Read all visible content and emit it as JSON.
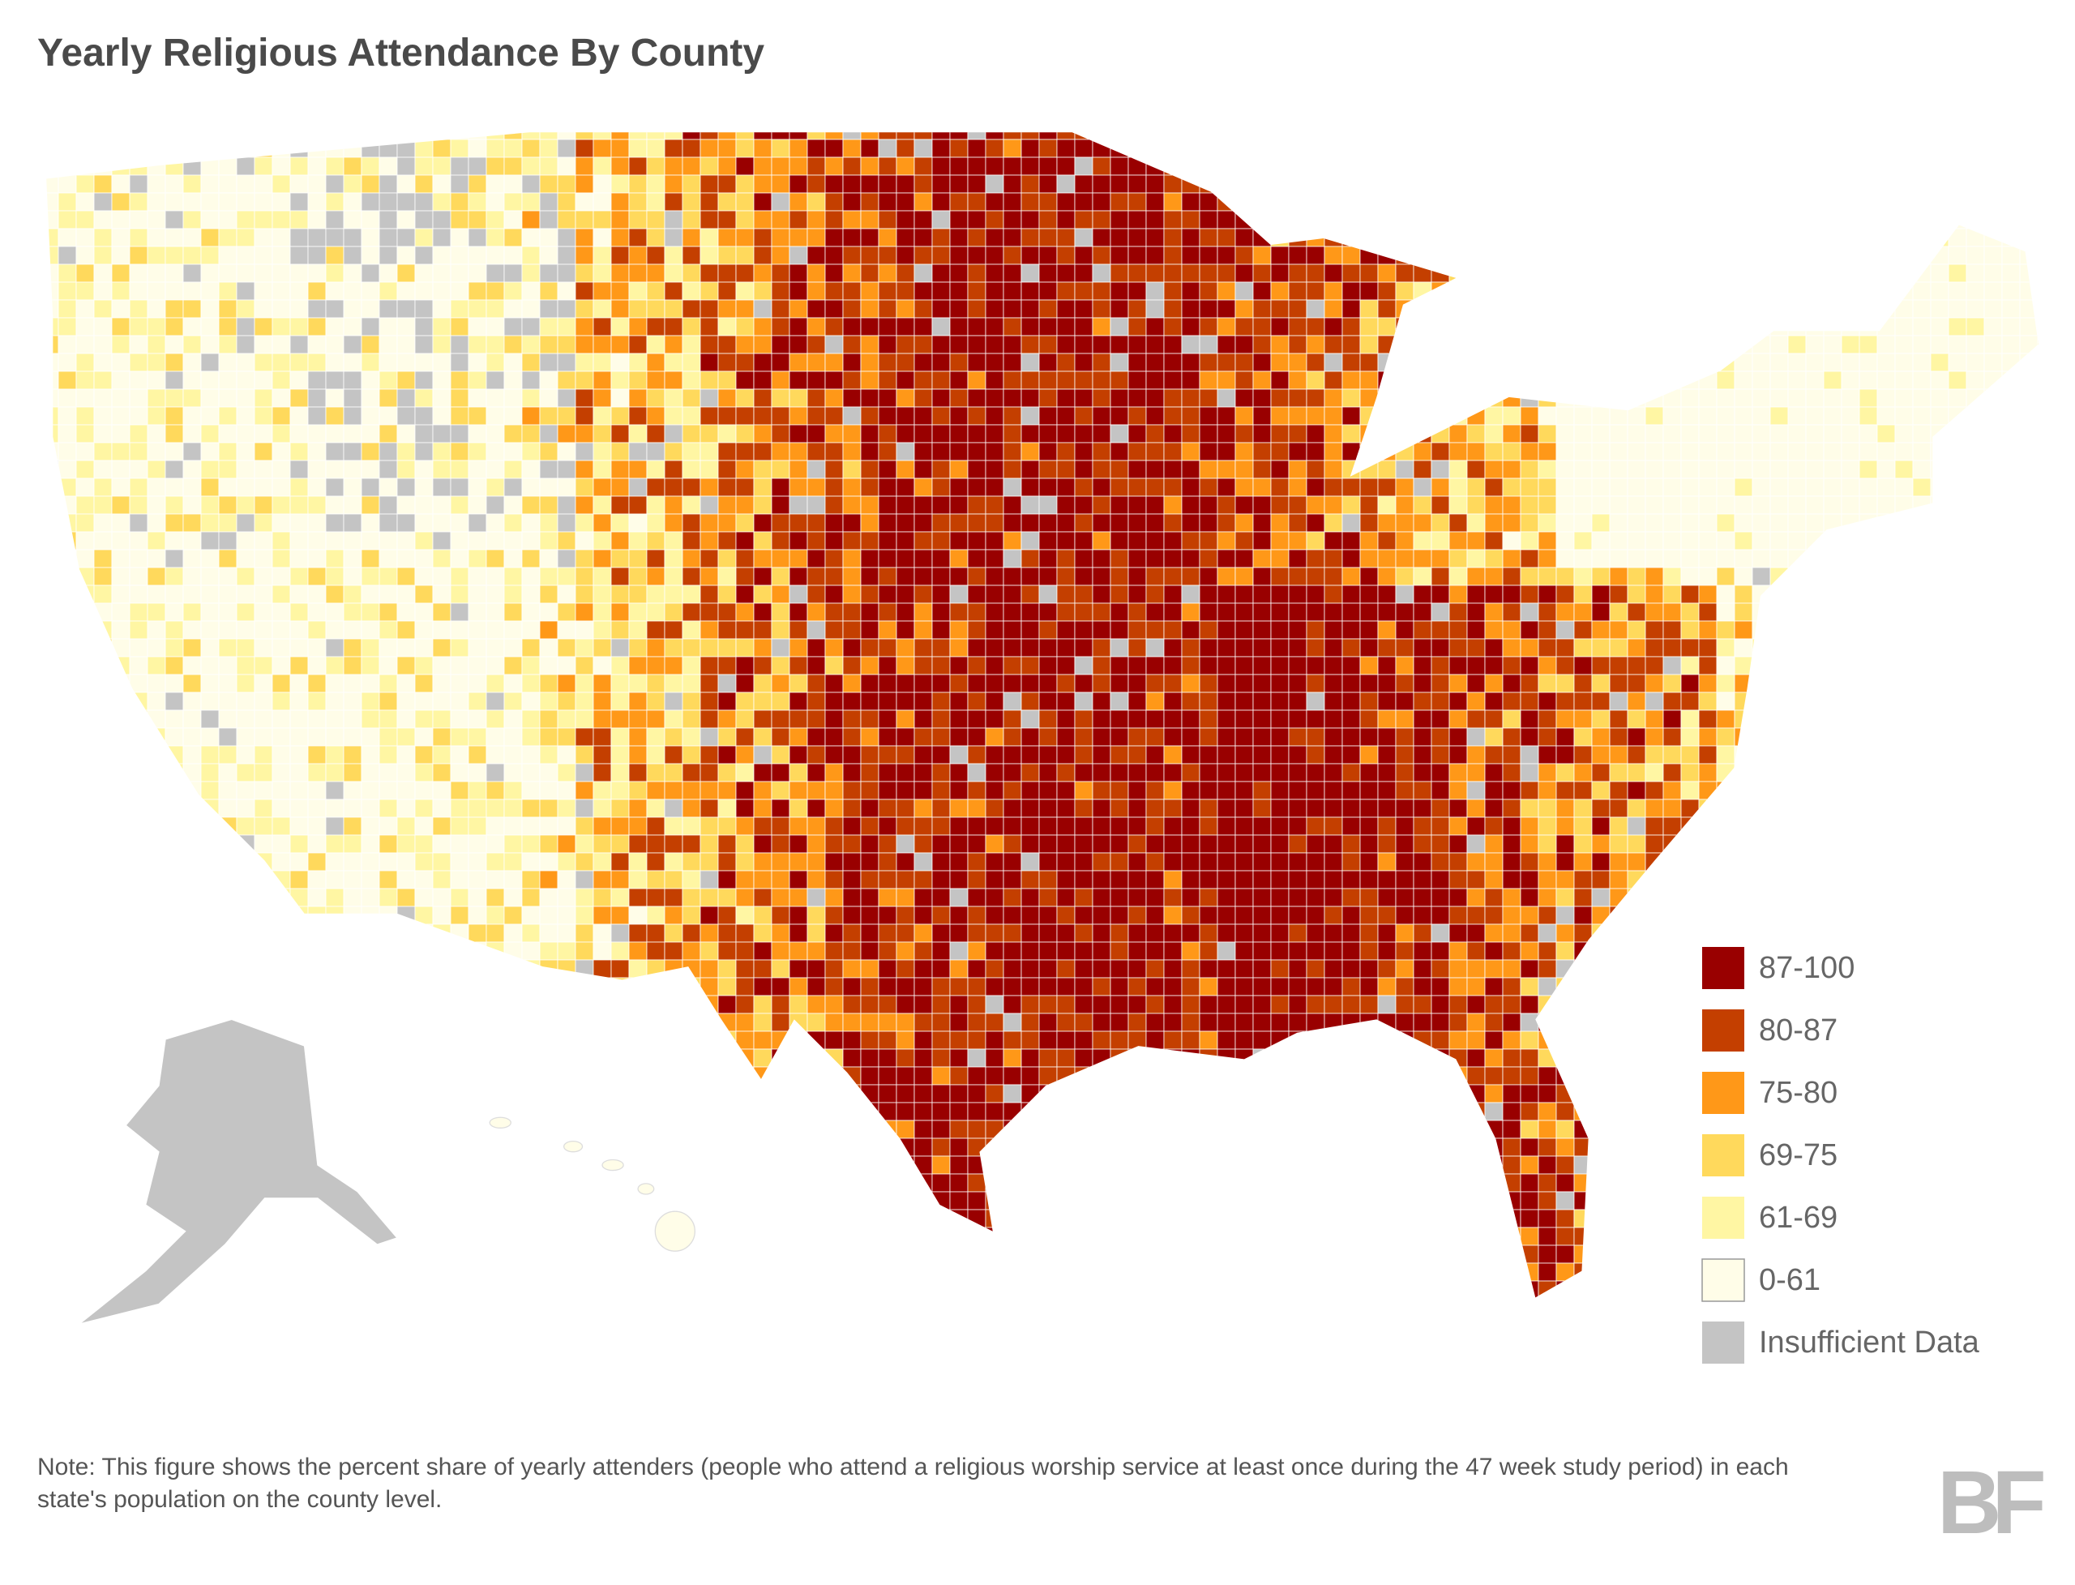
{
  "title": "Yearly Religious Attendance By County",
  "legend": {
    "items": [
      {
        "label": "87-100",
        "color": "#990000"
      },
      {
        "label": "80-87",
        "color": "#c43f00"
      },
      {
        "label": "75-80",
        "color": "#ff9818"
      },
      {
        "label": "69-75",
        "color": "#ffd95c"
      },
      {
        "label": "61-69",
        "color": "#fff6a3"
      },
      {
        "label": "0-61",
        "color": "#fffde8"
      },
      {
        "label": "Insufficient Data",
        "color": "#c4c4c4"
      }
    ]
  },
  "note": "Note: This figure shows the percent share of yearly attenders (people who attend a religious worship service at least once during the 47 week study period) in each state's population on the county level.",
  "logo": "BF"
}
